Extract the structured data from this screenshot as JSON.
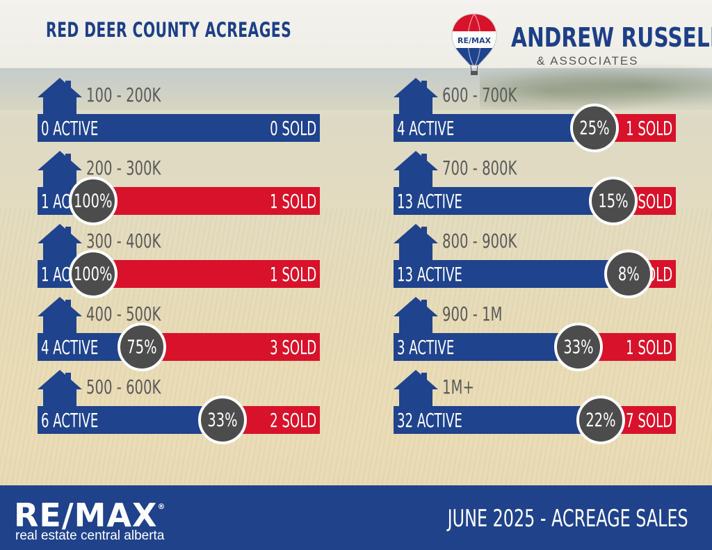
{
  "header": {
    "title": "RED DEER COUNTY ACREAGES",
    "balloon_text": "RE/MAX",
    "brand_name": "ANDREW RUSSELL",
    "brand_sub": "& ASSOCIATES"
  },
  "colors": {
    "active_blue": "#1f438c",
    "sold_red": "#d7122a",
    "circle_gray": "#4d4c4d",
    "footer_blue": "#1f428a"
  },
  "chart_data": {
    "type": "bar",
    "title": "RED DEER COUNTY ACREAGES",
    "categories": [
      "100 - 200K",
      "200 - 300K",
      "300 - 400K",
      "400 - 500K",
      "500 - 600K",
      "600 - 700K",
      "700 - 800K",
      "800 - 900K",
      "900 - 1M",
      "1M+"
    ],
    "series": [
      {
        "values": [
          0,
          1,
          1,
          4,
          6,
          4,
          13,
          13,
          3,
          32
        ]
      },
      {
        "values": [
          0,
          1,
          1,
          3,
          2,
          1,
          2,
          1,
          1,
          7
        ]
      }
    ],
    "rows": [
      {
        "range": "100 - 200K",
        "active": 0,
        "sold": 0,
        "active_label": "0 ACTIVE",
        "sold_label": "0 SOLD",
        "pct_label": ""
      },
      {
        "range": "200 - 300K",
        "active": 1,
        "sold": 1,
        "active_label": "1 ACTIVE",
        "sold_label": "1 SOLD",
        "pct_label": "100%"
      },
      {
        "range": "300 - 400K",
        "active": 1,
        "sold": 1,
        "active_label": "1 ACTIVE",
        "sold_label": "1 SOLD",
        "pct_label": "100%"
      },
      {
        "range": "400 - 500K",
        "active": 4,
        "sold": 3,
        "active_label": "4 ACTIVE",
        "sold_label": "3 SOLD",
        "pct_label": "75%"
      },
      {
        "range": "500 - 600K",
        "active": 6,
        "sold": 2,
        "active_label": "6 ACTIVE",
        "sold_label": "2 SOLD",
        "pct_label": "33%"
      },
      {
        "range": "600 - 700K",
        "active": 4,
        "sold": 1,
        "active_label": "4 ACTIVE",
        "sold_label": "1 SOLD",
        "pct_label": "25%"
      },
      {
        "range": "700 - 800K",
        "active": 13,
        "sold": 2,
        "active_label": "13 ACTIVE",
        "sold_label": "2 SOLD",
        "pct_label": "15%"
      },
      {
        "range": "800 - 900K",
        "active": 13,
        "sold": 1,
        "active_label": "13 ACTIVE",
        "sold_label": "1 SOLD",
        "pct_label": "8%"
      },
      {
        "range": "900 - 1M",
        "active": 3,
        "sold": 1,
        "active_label": "3 ACTIVE",
        "sold_label": "1 SOLD",
        "pct_label": "33%"
      },
      {
        "range": "1M+",
        "active": 32,
        "sold": 7,
        "active_label": "32 ACTIVE",
        "sold_label": "7 SOLD",
        "pct_label": "22%"
      }
    ]
  },
  "footer": {
    "logo": "RE/MAX",
    "logo_mark": "®",
    "subtitle": "real estate central alberta",
    "caption": "JUNE 2025 - ACREAGE SALES"
  }
}
